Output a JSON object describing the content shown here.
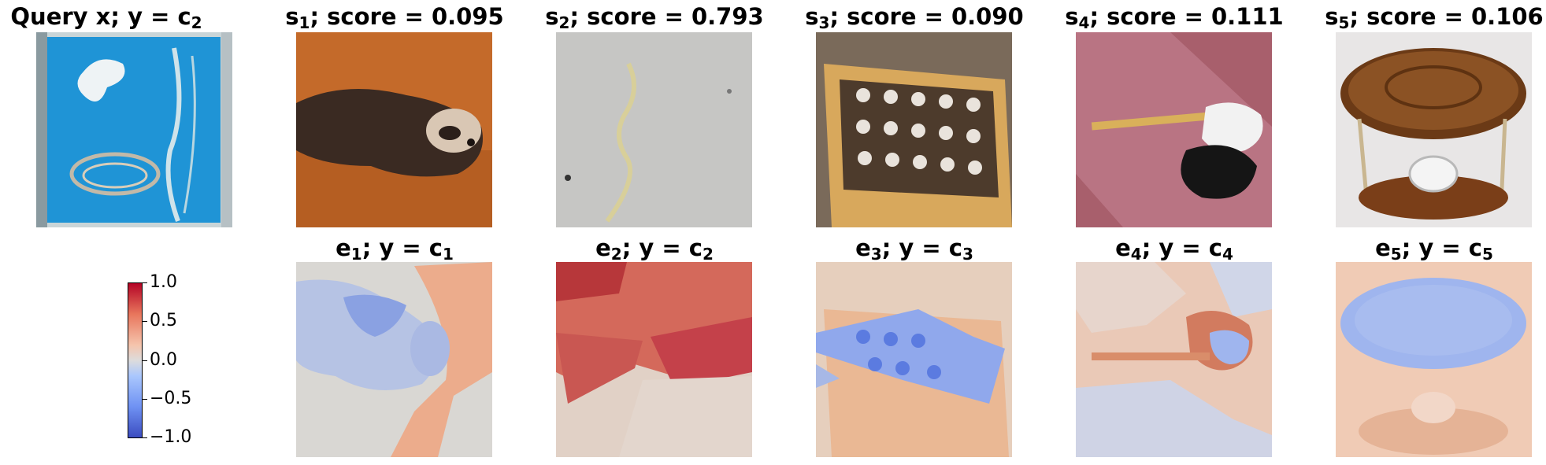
{
  "query": {
    "label": "Query x; y = c",
    "sub": "2"
  },
  "top_row": [
    {
      "label": "s",
      "sub": "1",
      "suffix": "; score = 0.095",
      "image": "ferret"
    },
    {
      "label": "s",
      "sub": "2",
      "suffix": "; score = 0.793",
      "image": "worm"
    },
    {
      "label": "s",
      "sub": "3",
      "suffix": "; score = 0.090",
      "image": "bottle-crate"
    },
    {
      "label": "s",
      "sub": "4",
      "suffix": "; score = 0.111",
      "image": "guitar-on-bed"
    },
    {
      "label": "s",
      "sub": "5",
      "suffix": "; score = 0.106",
      "image": "hourglass-table"
    }
  ],
  "bottom_row": [
    {
      "label": "e",
      "sub": "1",
      "mid": "; y = c",
      "sub2": "1"
    },
    {
      "label": "e",
      "sub": "2",
      "mid": "; y = c",
      "sub2": "2"
    },
    {
      "label": "e",
      "sub": "3",
      "mid": "; y = c",
      "sub2": "3"
    },
    {
      "label": "e",
      "sub": "4",
      "mid": "; y = c",
      "sub2": "4"
    },
    {
      "label": "e",
      "sub": "5",
      "mid": "; y = c",
      "sub2": "5"
    }
  ],
  "colorbar": {
    "ticks": [
      "1.0",
      "0.5",
      "0.0",
      "−0.5",
      "−1.0"
    ],
    "colors": {
      "max": "#b40426",
      "mid": "#dddcdc",
      "min": "#3b4cc0"
    }
  }
}
